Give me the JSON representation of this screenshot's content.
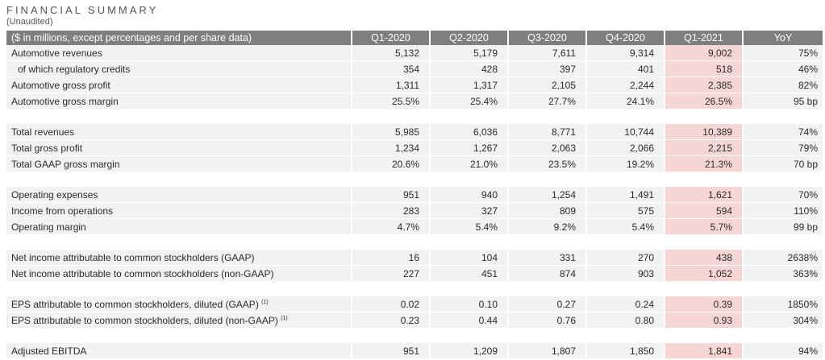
{
  "header": {
    "title": "FINANCIAL SUMMARY",
    "subtitle": "(Unaudited)"
  },
  "table": {
    "columns": [
      "($ in millions, except percentages and per share data)",
      "Q1-2020",
      "Q2-2020",
      "Q3-2020",
      "Q4-2020",
      "Q1-2021",
      "YoY"
    ],
    "highlight_color": "#f6d5d5",
    "groups": [
      [
        {
          "label": "Automotive revenues",
          "indent": false,
          "values": [
            "5,132",
            "5,179",
            "7,611",
            "9,314",
            "9,002",
            "75%"
          ]
        },
        {
          "label": "of which regulatory credits",
          "indent": true,
          "values": [
            "354",
            "428",
            "397",
            "401",
            "518",
            "46%"
          ]
        },
        {
          "label": "Automotive gross profit",
          "indent": false,
          "values": [
            "1,311",
            "1,317",
            "2,105",
            "2,244",
            "2,385",
            "82%"
          ]
        },
        {
          "label": "Automotive gross margin",
          "indent": false,
          "values": [
            "25.5%",
            "25.4%",
            "27.7%",
            "24.1%",
            "26.5%",
            "95 bp"
          ]
        }
      ],
      [
        {
          "label": "Total revenues",
          "indent": false,
          "values": [
            "5,985",
            "6,036",
            "8,771",
            "10,744",
            "10,389",
            "74%"
          ]
        },
        {
          "label": "Total gross profit",
          "indent": false,
          "values": [
            "1,234",
            "1,267",
            "2,063",
            "2,066",
            "2,215",
            "79%"
          ]
        },
        {
          "label": "Total GAAP gross margin",
          "indent": false,
          "values": [
            "20.6%",
            "21.0%",
            "23.5%",
            "19.2%",
            "21.3%",
            "70 bp"
          ]
        }
      ],
      [
        {
          "label": "Operating expenses",
          "indent": false,
          "values": [
            "951",
            "940",
            "1,254",
            "1,491",
            "1,621",
            "70%"
          ]
        },
        {
          "label": "Income from operations",
          "indent": false,
          "values": [
            "283",
            "327",
            "809",
            "575",
            "594",
            "110%"
          ]
        },
        {
          "label": "Operating margin",
          "indent": false,
          "values": [
            "4.7%",
            "5.4%",
            "9.2%",
            "5.4%",
            "5.7%",
            "99 bp"
          ]
        }
      ],
      [
        {
          "label": "Net income attributable to common stockholders (GAAP)",
          "indent": false,
          "values": [
            "16",
            "104",
            "331",
            "270",
            "438",
            "2638%"
          ]
        },
        {
          "label": "Net income attributable to common stockholders (non-GAAP)",
          "indent": false,
          "values": [
            "227",
            "451",
            "874",
            "903",
            "1,052",
            "363%"
          ]
        }
      ],
      [
        {
          "label": "EPS attributable to common stockholders, diluted (GAAP)",
          "note": "(1)",
          "indent": false,
          "values": [
            "0.02",
            "0.10",
            "0.27",
            "0.24",
            "0.39",
            "1850%"
          ]
        },
        {
          "label": "EPS attributable to common stockholders, diluted (non-GAAP)",
          "note": "(1)",
          "indent": false,
          "values": [
            "0.23",
            "0.44",
            "0.76",
            "0.80",
            "0.93",
            "304%"
          ]
        }
      ],
      [
        {
          "label": "Adjusted EBITDA",
          "indent": false,
          "values": [
            "951",
            "1,209",
            "1,807",
            "1,850",
            "1,841",
            "94%"
          ]
        }
      ]
    ]
  }
}
